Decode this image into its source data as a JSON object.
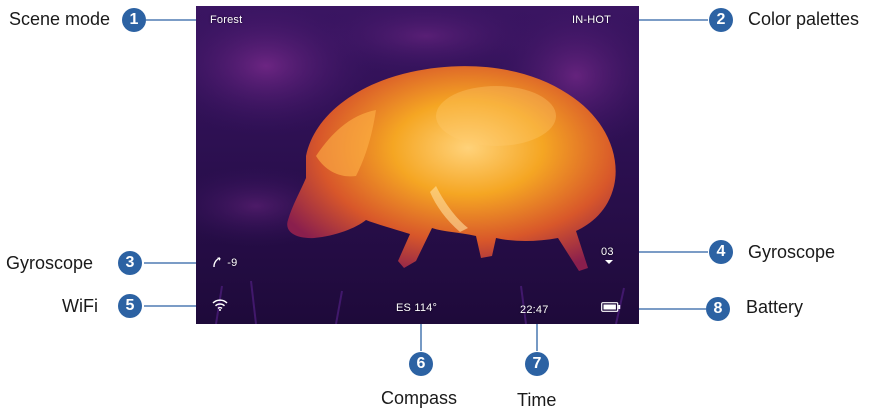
{
  "screen": {
    "scene_mode": "Forest",
    "color_palette": "IN-HOT",
    "gyro_left": "-9",
    "gyro_right": "03",
    "compass": "ES 114°",
    "time": "22:47",
    "wifi_icon": "wifi-icon",
    "battery_icon": "battery-icon",
    "gyro_icon": "tilt-arc-icon"
  },
  "callouts": [
    {
      "number": "1",
      "label": "Scene mode"
    },
    {
      "number": "2",
      "label": "Color palettes"
    },
    {
      "number": "3",
      "label": "Gyroscope"
    },
    {
      "number": "4",
      "label": "Gyroscope"
    },
    {
      "number": "5",
      "label": "WiFi"
    },
    {
      "number": "6",
      "label": "Compass"
    },
    {
      "number": "7",
      "label": "Time"
    },
    {
      "number": "8",
      "label": "Battery"
    }
  ],
  "colors": {
    "badge": "#2c62a3",
    "thermal_background": "#2b0f4f",
    "thermal_hot": "#f5a623"
  }
}
